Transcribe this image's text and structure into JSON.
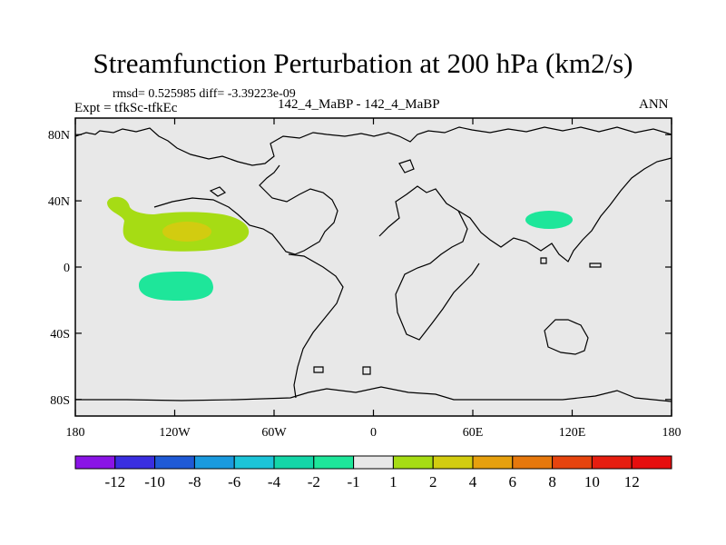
{
  "chart_data": {
    "type": "heatmap",
    "title": "Streamfunction Perturbation at 200 hPa (km2/s)",
    "left_label": "Expt = tfkSc-tfkEc",
    "stats_label": "rmsd= 0.525985 diff= -3.39223e-09",
    "center_label": "142_4_MaBP - 142_4_MaBP",
    "right_label": "ANN",
    "x_range": [
      -180,
      180
    ],
    "y_range": [
      -90,
      90
    ],
    "x_ticks": [
      {
        "value": -180,
        "label": "180"
      },
      {
        "value": -120,
        "label": "120W"
      },
      {
        "value": -60,
        "label": "60W"
      },
      {
        "value": 0,
        "label": "0"
      },
      {
        "value": 60,
        "label": "60E"
      },
      {
        "value": 120,
        "label": "120E"
      },
      {
        "value": 180,
        "label": "180"
      }
    ],
    "y_ticks": [
      {
        "value": 80,
        "label": "80N"
      },
      {
        "value": 40,
        "label": "40N"
      },
      {
        "value": 0,
        "label": "0"
      },
      {
        "value": -40,
        "label": "40S"
      },
      {
        "value": -80,
        "label": "80S"
      }
    ],
    "colorbar": {
      "levels": [
        "-12",
        "-10",
        "-8",
        "-6",
        "-4",
        "-2",
        "-1",
        "1",
        "2",
        "4",
        "6",
        "8",
        "10",
        "12"
      ],
      "colors": [
        "#8a14e6",
        "#3a2ee0",
        "#1f5ad6",
        "#1a9ade",
        "#1cc4d8",
        "#14d6a8",
        "#1ee69a",
        "#e8e8e8",
        "#a6dc14",
        "#d2cc10",
        "#e6a00e",
        "#e6780c",
        "#e6440e",
        "#e61e10",
        "#e60e0e"
      ]
    },
    "anomalies": [
      {
        "name": "North Pacific positive",
        "level_range": "1 to 2",
        "center_lon": -125,
        "center_lat": 25,
        "lon_extent": 60,
        "lat_extent": 22
      },
      {
        "name": "North Pacific core",
        "level_range": "2 to 4",
        "center_lon": -113,
        "center_lat": 22,
        "lon_extent": 20,
        "lat_extent": 9
      },
      {
        "name": "Tropical Pacific negative",
        "level_range": "-2 to -1",
        "center_lon": -114,
        "center_lat": -12,
        "lon_extent": 52,
        "lat_extent": 18
      },
      {
        "name": "East Asia negative",
        "level_range": "-2 to -1",
        "center_lon": 105,
        "center_lat": 29,
        "lon_extent": 28,
        "lat_extent": 11
      }
    ]
  }
}
